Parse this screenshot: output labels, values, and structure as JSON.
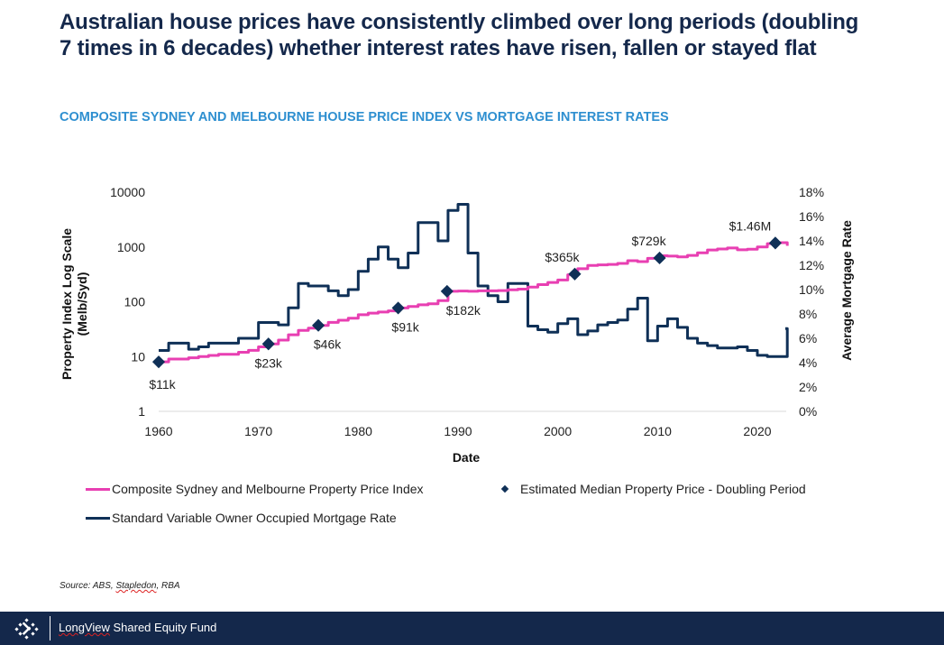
{
  "header": {
    "title": "Australian house prices have consistently climbed over long periods (doubling 7 times in 6 decades) whether interest rates have risen, fallen or stayed flat",
    "subtitle": "COMPOSITE SYDNEY AND MELBOURNE HOUSE PRICE INDEX VS MORTGAGE INTEREST RATES"
  },
  "colors": {
    "title": "#14284b",
    "subtitle": "#2e8fd0",
    "index_line": "#e83fb2",
    "rate_line": "#0f3057",
    "marker": "#0f3057",
    "footer_bg": "#14284b"
  },
  "chart_data": {
    "type": "line",
    "title": "COMPOSITE SYDNEY AND MELBOURNE HOUSE PRICE INDEX VS MORTGAGE INTEREST RATES",
    "xlabel": "Date",
    "ylabel": "Property Index Log Scale (Melb/Syd)",
    "y2label": "Average Mortgage Rate",
    "xlim": [
      1960,
      2023
    ],
    "x_ticks": [
      "1960",
      "1970",
      "1980",
      "1990",
      "2000",
      "2010",
      "2020"
    ],
    "y_scale": "log",
    "ylim": [
      1,
      10000
    ],
    "y_ticks": [
      "10000",
      "1000",
      "100",
      "10",
      "1"
    ],
    "y2lim": [
      0,
      18
    ],
    "y2_ticks": [
      "18%",
      "16%",
      "14%",
      "12%",
      "10%",
      "8%",
      "6%",
      "4%",
      "2%",
      "0%"
    ],
    "grid": false,
    "legend_position": "bottom",
    "series": [
      {
        "name": "Composite Sydney and Melbourne Property Price Index",
        "axis": "left",
        "x": [
          1960,
          1961,
          1962,
          1963,
          1964,
          1965,
          1966,
          1967,
          1968,
          1969,
          1970,
          1971,
          1972,
          1973,
          1974,
          1975,
          1976,
          1977,
          1978,
          1979,
          1980,
          1981,
          1982,
          1983,
          1984,
          1985,
          1986,
          1987,
          1988,
          1989,
          1990,
          1991,
          1992,
          1993,
          1994,
          1995,
          1996,
          1997,
          1998,
          1999,
          2000,
          2001,
          2002,
          2003,
          2004,
          2005,
          2006,
          2007,
          2008,
          2009,
          2010,
          2011,
          2012,
          2013,
          2014,
          2015,
          2016,
          2017,
          2018,
          2019,
          2020,
          2021,
          2022,
          2023
        ],
        "values": [
          8,
          9,
          9,
          9.5,
          10,
          10.5,
          11,
          11,
          12,
          13,
          15,
          17,
          20,
          25,
          30,
          33,
          37,
          42,
          46,
          50,
          58,
          62,
          65,
          68,
          77,
          82,
          88,
          92,
          105,
          155,
          157,
          155,
          158,
          158,
          160,
          165,
          170,
          185,
          205,
          225,
          250,
          310,
          400,
          460,
          470,
          480,
          500,
          560,
          540,
          620,
          690,
          680,
          660,
          700,
          780,
          880,
          920,
          960,
          890,
          910,
          1000,
          1150,
          1200,
          1050
        ]
      },
      {
        "name": "Standard Variable Owner Occupied Mortgage Rate",
        "axis": "right",
        "x": [
          1960,
          1961,
          1963,
          1964,
          1965,
          1968,
          1970,
          1972,
          1973,
          1974,
          1975,
          1977,
          1978,
          1979,
          1980,
          1981,
          1982,
          1983,
          1984,
          1985,
          1986,
          1987,
          1988,
          1989,
          1990,
          1991,
          1992,
          1993,
          1994,
          1995,
          1996,
          1997,
          1998,
          1999,
          2000,
          2001,
          2002,
          2003,
          2004,
          2005,
          2006,
          2007,
          2008,
          2009,
          2010,
          2011,
          2012,
          2013,
          2014,
          2015,
          2016,
          2017,
          2018,
          2019,
          2020,
          2021,
          2022,
          2023
        ],
        "values": [
          5.0,
          5.6,
          5.1,
          5.3,
          5.6,
          6.0,
          7.3,
          7.1,
          8.5,
          10.5,
          10.3,
          9.9,
          9.5,
          10.0,
          11.5,
          12.5,
          13.5,
          12.5,
          11.8,
          13.0,
          15.5,
          15.5,
          14.0,
          16.5,
          17.0,
          13.0,
          10.3,
          9.5,
          9.0,
          10.5,
          10.5,
          7.0,
          6.7,
          6.5,
          7.2,
          7.6,
          6.3,
          6.6,
          7.1,
          7.3,
          7.5,
          8.4,
          9.3,
          5.8,
          7.0,
          7.6,
          6.9,
          6.0,
          5.6,
          5.4,
          5.2,
          5.2,
          5.3,
          5.0,
          4.6,
          4.5,
          4.5,
          6.8
        ]
      },
      {
        "name": "Estimated Median Property Price - Doubling Period",
        "type": "scatter",
        "axis": "left",
        "points": [
          {
            "x": 1960,
            "y": 8,
            "label": "$11k"
          },
          {
            "x": 1971,
            "y": 17,
            "label": "$23k"
          },
          {
            "x": 1976,
            "y": 37,
            "label": "$46k"
          },
          {
            "x": 1984,
            "y": 77,
            "label": "$91k"
          },
          {
            "x": 1988.9,
            "y": 155,
            "label": "$182k"
          },
          {
            "x": 2001.7,
            "y": 320,
            "label": "$365k"
          },
          {
            "x": 2010.2,
            "y": 630,
            "label": "$729k"
          },
          {
            "x": 2021.8,
            "y": 1180,
            "label": "$1.46M"
          }
        ]
      }
    ]
  },
  "legend": {
    "items": [
      {
        "label": "Composite Sydney and Melbourne Property Price Index",
        "kind": "line"
      },
      {
        "label": "Estimated Median Property Price - Doubling Period",
        "kind": "diamond"
      },
      {
        "label": "Standard Variable Owner Occupied Mortgage Rate",
        "kind": "line"
      }
    ]
  },
  "source": {
    "prefix": "Source: ABS, ",
    "underlined": "Stapledon",
    "suffix": ", RBA"
  },
  "footer": {
    "brand_underlined": "LongView",
    "brand_rest": " Shared Equity Fund",
    "logo_icon": "longview-logo-icon"
  }
}
